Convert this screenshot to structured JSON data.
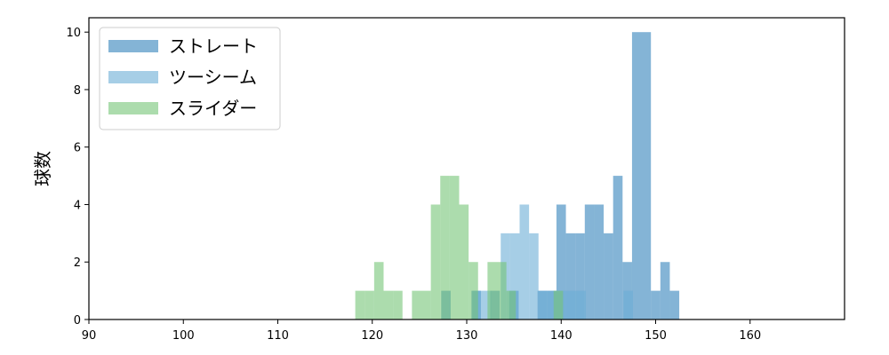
{
  "chart_data": {
    "type": "bar",
    "histogram": true,
    "xlabel": "",
    "ylabel": "球数",
    "xlim": [
      90,
      170
    ],
    "ylim": [
      0,
      10.5
    ],
    "xticks": [
      90,
      100,
      110,
      120,
      130,
      140,
      150,
      160
    ],
    "yticks": [
      0,
      2,
      4,
      6,
      8,
      10
    ],
    "grid": false,
    "legend_position": "top-left",
    "series": [
      {
        "name": "ストレート",
        "color": "#1f77b4",
        "opacity": 0.55,
        "bins": [
          {
            "x0": 127.3,
            "x1": 128.3,
            "count": 1
          },
          {
            "x0": 130.5,
            "x1": 131.5,
            "count": 1
          },
          {
            "x0": 132.5,
            "x1": 133.5,
            "count": 1
          },
          {
            "x0": 134.5,
            "x1": 135.5,
            "count": 1
          },
          {
            "x0": 137.5,
            "x1": 138.5,
            "count": 1
          },
          {
            "x0": 138.5,
            "x1": 139.5,
            "count": 1
          },
          {
            "x0": 139.5,
            "x1": 140.5,
            "count": 4
          },
          {
            "x0": 140.5,
            "x1": 141.5,
            "count": 3
          },
          {
            "x0": 141.5,
            "x1": 142.5,
            "count": 3
          },
          {
            "x0": 142.5,
            "x1": 143.5,
            "count": 4
          },
          {
            "x0": 143.5,
            "x1": 144.5,
            "count": 4
          },
          {
            "x0": 144.5,
            "x1": 145.5,
            "count": 3
          },
          {
            "x0": 145.5,
            "x1": 146.5,
            "count": 5
          },
          {
            "x0": 146.5,
            "x1": 147.5,
            "count": 2
          },
          {
            "x0": 147.5,
            "x1": 149.5,
            "count": 10
          },
          {
            "x0": 149.5,
            "x1": 150.5,
            "count": 1
          },
          {
            "x0": 150.5,
            "x1": 151.5,
            "count": 2
          },
          {
            "x0": 151.5,
            "x1": 152.5,
            "count": 1
          }
        ]
      },
      {
        "name": "ツーシーム",
        "color": "#6baed6",
        "opacity": 0.6,
        "bins": [
          {
            "x0": 130.6,
            "x1": 131.6,
            "count": 1
          },
          {
            "x0": 131.6,
            "x1": 132.6,
            "count": 1
          },
          {
            "x0": 133.6,
            "x1": 134.6,
            "count": 3
          },
          {
            "x0": 134.6,
            "x1": 135.6,
            "count": 3
          },
          {
            "x0": 135.6,
            "x1": 136.6,
            "count": 4
          },
          {
            "x0": 136.6,
            "x1": 137.6,
            "count": 3
          },
          {
            "x0": 137.6,
            "x1": 138.6,
            "count": 1
          },
          {
            "x0": 138.6,
            "x1": 139.6,
            "count": 1
          },
          {
            "x0": 139.6,
            "x1": 140.6,
            "count": 1
          },
          {
            "x0": 140.6,
            "x1": 141.6,
            "count": 1
          },
          {
            "x0": 141.6,
            "x1": 142.6,
            "count": 1
          },
          {
            "x0": 146.6,
            "x1": 147.6,
            "count": 1
          }
        ]
      },
      {
        "name": "スライダー",
        "color": "#74c476",
        "opacity": 0.6,
        "bins": [
          {
            "x0": 118.2,
            "x1": 119.2,
            "count": 1
          },
          {
            "x0": 119.2,
            "x1": 120.2,
            "count": 1
          },
          {
            "x0": 120.2,
            "x1": 121.2,
            "count": 2
          },
          {
            "x0": 121.2,
            "x1": 122.2,
            "count": 1
          },
          {
            "x0": 122.2,
            "x1": 123.2,
            "count": 1
          },
          {
            "x0": 124.2,
            "x1": 125.2,
            "count": 1
          },
          {
            "x0": 125.2,
            "x1": 126.2,
            "count": 1
          },
          {
            "x0": 126.2,
            "x1": 127.2,
            "count": 4
          },
          {
            "x0": 127.2,
            "x1": 128.2,
            "count": 5
          },
          {
            "x0": 128.2,
            "x1": 129.2,
            "count": 5
          },
          {
            "x0": 129.2,
            "x1": 130.2,
            "count": 4
          },
          {
            "x0": 130.2,
            "x1": 131.2,
            "count": 2
          },
          {
            "x0": 132.2,
            "x1": 133.2,
            "count": 2
          },
          {
            "x0": 133.2,
            "x1": 134.2,
            "count": 2
          },
          {
            "x0": 134.2,
            "x1": 135.2,
            "count": 1
          },
          {
            "x0": 139.2,
            "x1": 140.2,
            "count": 1
          }
        ]
      }
    ]
  }
}
